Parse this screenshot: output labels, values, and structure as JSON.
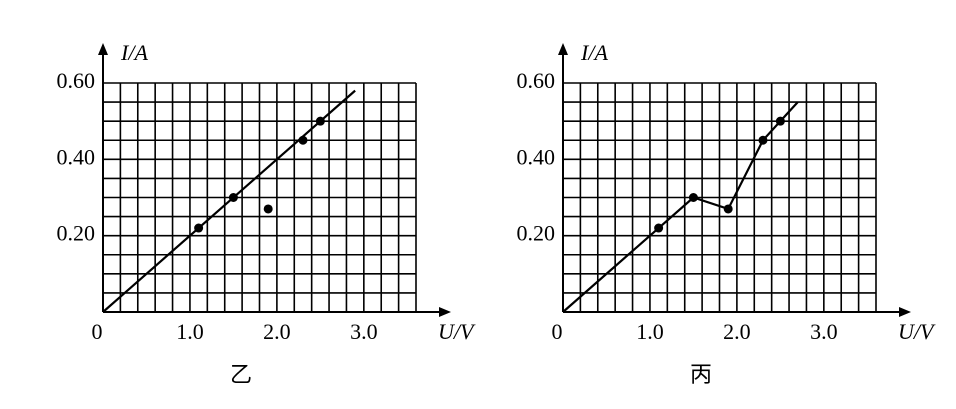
{
  "chart_data": [
    {
      "type": "scatter",
      "title": "乙",
      "xlabel": "U/V",
      "ylabel": "I/A",
      "xlim": [
        0,
        3.6
      ],
      "ylim": [
        0,
        0.6
      ],
      "xticks": [
        0,
        {
          "value": 1,
          "label": "1.0"
        },
        {
          "value": 2,
          "label": "2.0"
        },
        {
          "value": 3,
          "label": "3.0"
        }
      ],
      "yticks": [
        {
          "value": 0.2,
          "label": "0.20"
        },
        {
          "value": 0.4,
          "label": "0.40"
        },
        {
          "value": 0.6,
          "label": "0.60"
        }
      ],
      "grid": true,
      "grid_x_step": 0.2,
      "grid_y_step": 0.05,
      "color": "#000000",
      "series": [
        {
          "x": [
            1.1,
            1.5,
            1.9,
            2.3,
            2.5
          ],
          "values": [
            0.22,
            0.3,
            0.27,
            0.45,
            0.5
          ]
        }
      ],
      "line": {
        "x": [
          0,
          2.9
        ],
        "values": [
          0,
          0.58
        ]
      }
    },
    {
      "type": "scatter",
      "title": "丙",
      "xlabel": "U/V",
      "ylabel": "I/A",
      "xlim": [
        0,
        3.6
      ],
      "ylim": [
        0,
        0.6
      ],
      "xticks": [
        0,
        {
          "value": 1,
          "label": "1.0"
        },
        {
          "value": 2,
          "label": "2.0"
        },
        {
          "value": 3,
          "label": "3.0"
        }
      ],
      "yticks": [
        {
          "value": 0.2,
          "label": "0.20"
        },
        {
          "value": 0.4,
          "label": "0.40"
        },
        {
          "value": 0.6,
          "label": "0.60"
        }
      ],
      "grid": true,
      "grid_x_step": 0.2,
      "grid_y_step": 0.05,
      "color": "#000000",
      "series": [
        {
          "x": [
            1.1,
            1.5,
            1.9,
            2.3,
            2.5
          ],
          "values": [
            0.22,
            0.3,
            0.27,
            0.45,
            0.5
          ]
        }
      ],
      "line": {
        "x": [
          0,
          1.1,
          1.5,
          1.9,
          2.3,
          2.5,
          2.7
        ],
        "values": [
          0,
          0.22,
          0.3,
          0.27,
          0.45,
          0.5,
          0.55
        ]
      }
    }
  ]
}
